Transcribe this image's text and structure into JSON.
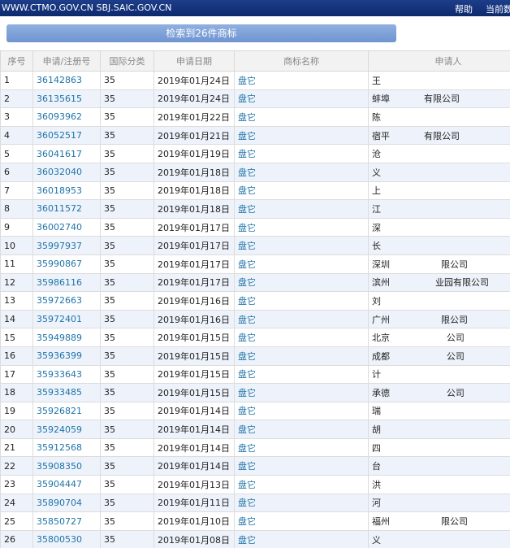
{
  "header": {
    "site": "WWW.CTMO.GOV.CN SBJ.SAIC.GOV.CN",
    "links": [
      "帮助",
      "当前数"
    ]
  },
  "button": "检索到26件商标",
  "table": {
    "columns": [
      "序号",
      "申请/注册号",
      "国际分类",
      "申请日期",
      "商标名称",
      "申请人"
    ],
    "rows": [
      [
        "1",
        "36142863",
        "35",
        "2019年01月24日",
        "盘它",
        "王"
      ],
      [
        "2",
        "36135615",
        "35",
        "2019年01月24日",
        "盘它",
        "蚌埠            有限公司"
      ],
      [
        "3",
        "36093962",
        "35",
        "2019年01月22日",
        "盘它",
        "陈"
      ],
      [
        "4",
        "36052517",
        "35",
        "2019年01月21日",
        "盘它",
        "宿平            有限公司"
      ],
      [
        "5",
        "36041617",
        "35",
        "2019年01月19日",
        "盘它",
        "沧"
      ],
      [
        "6",
        "36032040",
        "35",
        "2019年01月18日",
        "盘它",
        "义"
      ],
      [
        "7",
        "36018953",
        "35",
        "2019年01月18日",
        "盘它",
        "上"
      ],
      [
        "8",
        "36011572",
        "35",
        "2019年01月18日",
        "盘它",
        "江"
      ],
      [
        "9",
        "36002740",
        "35",
        "2019年01月17日",
        "盘它",
        "深"
      ],
      [
        "10",
        "35997937",
        "35",
        "2019年01月17日",
        "盘它",
        "长"
      ],
      [
        "11",
        "35990867",
        "35",
        "2019年01月17日",
        "盘它",
        "深圳                  限公司"
      ],
      [
        "12",
        "35986116",
        "35",
        "2019年01月17日",
        "盘它",
        "滨州                业园有限公司"
      ],
      [
        "13",
        "35972663",
        "35",
        "2019年01月16日",
        "盘它",
        "刘"
      ],
      [
        "14",
        "35972401",
        "35",
        "2019年01月16日",
        "盘它",
        "广州                  限公司"
      ],
      [
        "15",
        "35949889",
        "35",
        "2019年01月15日",
        "盘它",
        "北京                    公司"
      ],
      [
        "16",
        "35936399",
        "35",
        "2019年01月15日",
        "盘它",
        "成都                    公司"
      ],
      [
        "17",
        "35933643",
        "35",
        "2019年01月15日",
        "盘它",
        "计"
      ],
      [
        "18",
        "35933485",
        "35",
        "2019年01月15日",
        "盘它",
        "承德                    公司"
      ],
      [
        "19",
        "35926821",
        "35",
        "2019年01月14日",
        "盘它",
        "瑞"
      ],
      [
        "20",
        "35924059",
        "35",
        "2019年01月14日",
        "盘它",
        "胡"
      ],
      [
        "21",
        "35912568",
        "35",
        "2019年01月14日",
        "盘它",
        "四"
      ],
      [
        "22",
        "35908350",
        "35",
        "2019年01月14日",
        "盘它",
        "台"
      ],
      [
        "23",
        "35904447",
        "35",
        "2019年01月13日",
        "盘它",
        "洪"
      ],
      [
        "24",
        "35890704",
        "35",
        "2019年01月11日",
        "盘它",
        "河"
      ],
      [
        "25",
        "35850727",
        "35",
        "2019年01月10日",
        "盘它",
        "福州                  限公司"
      ],
      [
        "26",
        "35800530",
        "35",
        "2019年01月08日",
        "盘它",
        "义"
      ]
    ]
  }
}
